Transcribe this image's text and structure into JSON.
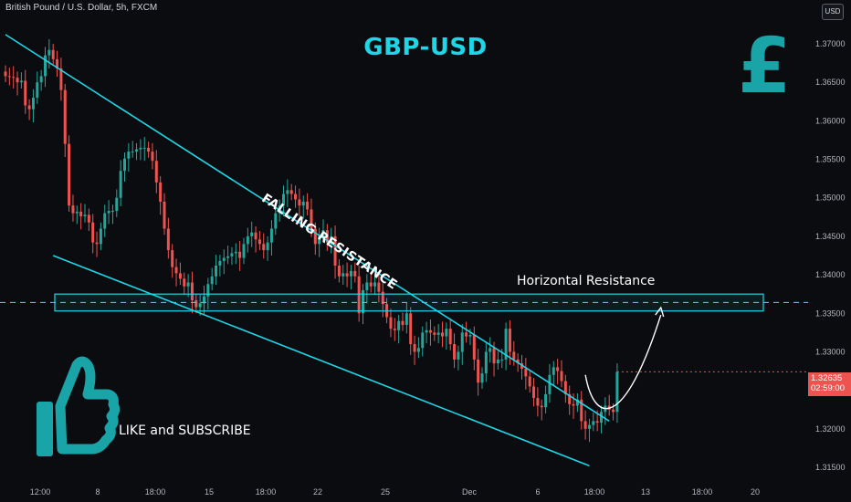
{
  "header": {
    "symbol_title": "British Pound / U.S. Dollar, 5h, FXCM",
    "currency_button": "USD",
    "main_title": "GBP-USD",
    "logo_glyph": "£"
  },
  "annotations": {
    "falling_resistance": "FALLING RESISTANCE",
    "horizontal_resistance": "Horizontal Resistance",
    "like_subscribe": "LIKE and SUBSCRIBE"
  },
  "price_badge": {
    "price": "1.32635",
    "countdown": "02:59:00"
  },
  "colors": {
    "up": "#26a69a",
    "down": "#ef5350",
    "accent": "#1fd6e6",
    "logo": "#19a5a8",
    "background": "#0b0c10",
    "badge": "#ef5350"
  },
  "chart_data": {
    "type": "candlestick",
    "title": "GBP-USD",
    "ylim": [
      1.313,
      1.3745
    ],
    "y_ticks": [
      "1.37000",
      "1.36500",
      "1.36000",
      "1.35500",
      "1.35000",
      "1.34500",
      "1.34000",
      "1.33500",
      "1.33000",
      "1.32000",
      "1.31500"
    ],
    "x_ticks": [
      "12:00",
      "8",
      "18:00",
      "15",
      "18:00",
      "22",
      "25",
      "Dec",
      "6",
      "18:00",
      "13",
      "18:00",
      "20"
    ],
    "grid": false,
    "horizontal_resistance_level": 1.3364,
    "horizontal_zone": [
      1.3353,
      1.3375
    ],
    "falling_resistance_line": [
      [
        0,
        1.3712
      ],
      [
        152,
        1.321
      ]
    ],
    "falling_support_line": [
      [
        12,
        1.3425
      ],
      [
        147,
        1.3152
      ]
    ],
    "projection": {
      "from": [
        146,
        1.327
      ],
      "to": [
        165,
        1.3355
      ]
    },
    "candles_close": [
      1.3658,
      1.3657,
      1.3656,
      1.365,
      1.3652,
      1.362,
      1.3615,
      1.363,
      1.365,
      1.3658,
      1.3685,
      1.3692,
      1.368,
      1.3668,
      1.364,
      1.357,
      1.349,
      1.348,
      1.3482,
      1.3476,
      1.3478,
      1.3468,
      1.3442,
      1.344,
      1.346,
      1.348,
      1.3483,
      1.3483,
      1.35,
      1.3535,
      1.3551,
      1.356,
      1.356,
      1.3563,
      1.3565,
      1.3565,
      1.356,
      1.3548,
      1.352,
      1.3495,
      1.346,
      1.3432,
      1.341,
      1.3402,
      1.3395,
      1.3385,
      1.339,
      1.3367,
      1.3358,
      1.3363,
      1.3372,
      1.3388,
      1.3398,
      1.3412,
      1.3418,
      1.3422,
      1.3424,
      1.3428,
      1.343,
      1.3422,
      1.344,
      1.345,
      1.3455,
      1.3446,
      1.344,
      1.3432,
      1.3442,
      1.346,
      1.348,
      1.349,
      1.3505,
      1.351,
      1.3505,
      1.3498,
      1.349,
      1.3495,
      1.3485,
      1.346,
      1.344,
      1.345,
      1.3458,
      1.3442,
      1.345,
      1.3412,
      1.3398,
      1.3402,
      1.3398,
      1.3405,
      1.3398,
      1.335,
      1.338,
      1.339,
      1.3385,
      1.339,
      1.3378,
      1.3362,
      1.3345,
      1.333,
      1.3328,
      1.334,
      1.3335,
      1.335,
      1.331,
      1.33,
      1.3305,
      1.3325,
      1.3328,
      1.3325,
      1.3322,
      1.3325,
      1.332,
      1.333,
      1.331,
      1.329,
      1.33,
      1.3325,
      1.332,
      1.3322,
      1.329,
      1.326,
      1.3272,
      1.33,
      1.3305,
      1.3285,
      1.329,
      1.329,
      1.333,
      1.33,
      1.329,
      1.3285,
      1.3278,
      1.3268,
      1.3255,
      1.324,
      1.323,
      1.3228,
      1.3245,
      1.327,
      1.328,
      1.3275,
      1.3262,
      1.3245,
      1.3232,
      1.323,
      1.3238,
      1.321,
      1.32,
      1.3205,
      1.321,
      1.3208,
      1.3222,
      1.323,
      1.3225,
      1.3222,
      1.3274
    ]
  }
}
